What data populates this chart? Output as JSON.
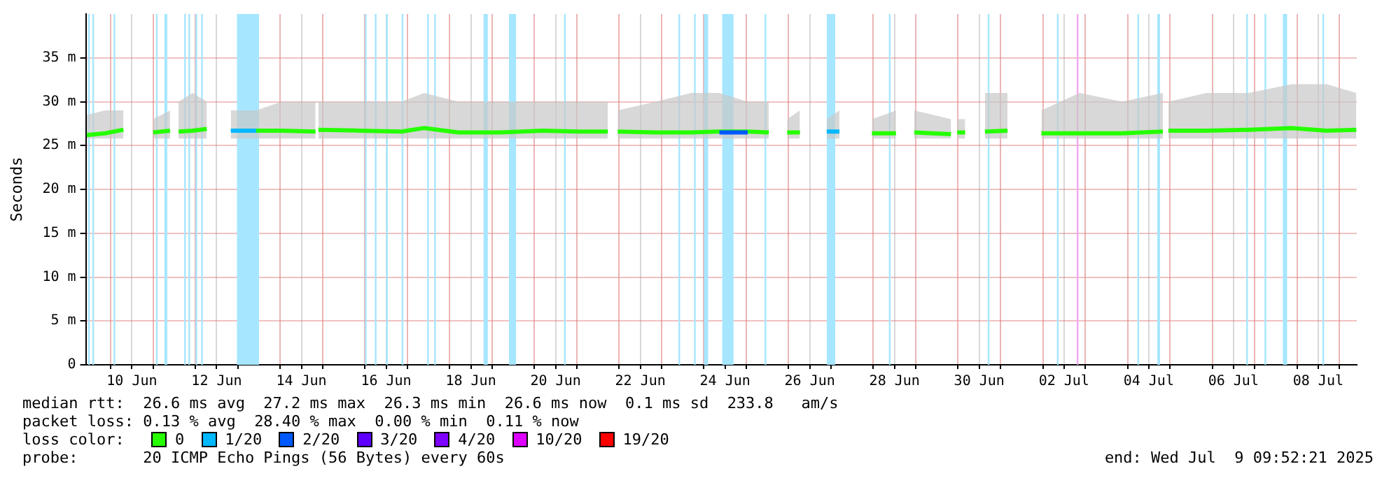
{
  "chart_data": {
    "type": "line",
    "ylabel": "Seconds",
    "legend_title": "loss color:",
    "legend": "bottom",
    "grid": true,
    "marker": "none",
    "line_style": "solid",
    "annotations": [
      "median rtt:  26.6 ms avg  27.2 ms max  26.3 ms min  26.6 ms now  0.1 ms sd  233.8   am/s",
      "packet loss: 0.13 % avg  28.40 % max  0.00 % min  0.11 % now",
      "probe:       20 ICMP Echo Pings (56 Bytes) every 60s",
      "end: Wed Jul  9 09:52:21 2025"
    ],
    "xlim": [
      "2025-06-09T09:52",
      "2025-07-09T09:52"
    ],
    "xticks": [
      {
        "value": "2025-06-10T00:00",
        "label": null
      },
      {
        "value": "2025-06-10T12:00",
        "label": "10 Jun"
      },
      {
        "value": "2025-06-11T00:00",
        "label": null
      },
      {
        "value": "2025-06-12T00:00",
        "label": null
      },
      {
        "value": "2025-06-12T12:00",
        "label": "12 Jun"
      },
      {
        "value": "2025-06-13T00:00",
        "label": null
      },
      {
        "value": "2025-06-14T00:00",
        "label": null
      },
      {
        "value": "2025-06-14T12:00",
        "label": "14 Jun"
      },
      {
        "value": "2025-06-15T00:00",
        "label": null
      },
      {
        "value": "2025-06-16T00:00",
        "label": null
      },
      {
        "value": "2025-06-16T12:00",
        "label": "16 Jun"
      },
      {
        "value": "2025-06-17T00:00",
        "label": null
      },
      {
        "value": "2025-06-18T00:00",
        "label": null
      },
      {
        "value": "2025-06-18T12:00",
        "label": "18 Jun"
      },
      {
        "value": "2025-06-19T00:00",
        "label": null
      },
      {
        "value": "2025-06-20T00:00",
        "label": null
      },
      {
        "value": "2025-06-20T12:00",
        "label": "20 Jun"
      },
      {
        "value": "2025-06-21T00:00",
        "label": null
      },
      {
        "value": "2025-06-22T00:00",
        "label": null
      },
      {
        "value": "2025-06-22T12:00",
        "label": "22 Jun"
      },
      {
        "value": "2025-06-23T00:00",
        "label": null
      },
      {
        "value": "2025-06-24T00:00",
        "label": null
      },
      {
        "value": "2025-06-24T12:00",
        "label": "24 Jun"
      },
      {
        "value": "2025-06-25T00:00",
        "label": null
      },
      {
        "value": "2025-06-26T00:00",
        "label": null
      },
      {
        "value": "2025-06-26T12:00",
        "label": "26 Jun"
      },
      {
        "value": "2025-06-27T00:00",
        "label": null
      },
      {
        "value": "2025-06-28T00:00",
        "label": null
      },
      {
        "value": "2025-06-28T12:00",
        "label": "28 Jun"
      },
      {
        "value": "2025-06-29T00:00",
        "label": null
      },
      {
        "value": "2025-06-30T00:00",
        "label": null
      },
      {
        "value": "2025-06-30T12:00",
        "label": "30 Jun"
      },
      {
        "value": "2025-07-01T00:00",
        "label": null
      },
      {
        "value": "2025-07-02T00:00",
        "label": null
      },
      {
        "value": "2025-07-02T12:00",
        "label": "02 Jul"
      },
      {
        "value": "2025-07-03T00:00",
        "label": null
      },
      {
        "value": "2025-07-04T00:00",
        "label": null
      },
      {
        "value": "2025-07-04T12:00",
        "label": "04 Jul"
      },
      {
        "value": "2025-07-05T00:00",
        "label": null
      },
      {
        "value": "2025-07-06T00:00",
        "label": null
      },
      {
        "value": "2025-07-06T12:00",
        "label": "06 Jul"
      },
      {
        "value": "2025-07-07T00:00",
        "label": null
      },
      {
        "value": "2025-07-08T00:00",
        "label": null
      },
      {
        "value": "2025-07-08T12:00",
        "label": "08 Jul"
      },
      {
        "value": "2025-07-09T00:00",
        "label": null
      }
    ],
    "ylim": [
      0,
      40
    ],
    "yticks": [
      0,
      {
        "value": 5,
        "label": "5 m"
      },
      {
        "value": 10,
        "label": "10 m"
      },
      {
        "value": 15,
        "label": "15 m"
      },
      {
        "value": 20,
        "label": "20 m"
      },
      {
        "value": 25,
        "label": "25 m"
      },
      {
        "value": 30,
        "label": "30 m"
      },
      {
        "value": 35,
        "label": "35 m"
      }
    ],
    "x": [
      "2025-06-09T10:24",
      "2025-06-09T20:48",
      "2025-06-10T07:12",
      "2025-06-10T12:00",
      "2025-06-11T00:00",
      "2025-06-11T09:36",
      "2025-06-11T12:00",
      "2025-06-11T14:24",
      "2025-06-11T22:24",
      "2025-06-12T06:24",
      "2025-06-12T12:00",
      "2025-06-12T20:00",
      "2025-06-13T10:24",
      "2025-06-14T00:48",
      "2025-06-14T20:00",
      "2025-06-14T21:00",
      "2025-06-14T21:36",
      "2025-06-15T20:48",
      "2025-06-16T20:48",
      "2025-06-17T09:36",
      "2025-06-18T04:48",
      "2025-06-19T04:48",
      "2025-06-20T04:48",
      "2025-06-21T00:48",
      "2025-06-21T17:36",
      "2025-06-21T20:00",
      "2025-06-21T23:12",
      "2025-06-22T20:48",
      "2025-06-23T16:48",
      "2025-06-24T08:48",
      "2025-06-25T00:48",
      "2025-06-25T12:48",
      "2025-06-25T15:00",
      "2025-06-25T23:12",
      "2025-06-26T06:24",
      "2025-06-26T12:00",
      "2025-06-26T21:36",
      "2025-06-27T04:48",
      "2025-06-27T12:00",
      "2025-06-27T23:12",
      "2025-06-28T12:48",
      "2025-06-28T20:00",
      "2025-06-28T23:12",
      "2025-06-29T20:00",
      "2025-06-29T22:00",
      "2025-06-29T23:30",
      "2025-06-30T04:00",
      "2025-06-30T06:00",
      "2025-06-30T15:12",
      "2025-07-01T04:00",
      "2025-07-01T12:00",
      "2025-07-01T23:12",
      "2025-07-02T20:48",
      "2025-07-03T20:48",
      "2025-07-04T20:00",
      "2025-07-04T22:00",
      "2025-07-04T23:12",
      "2025-07-05T20:48",
      "2025-07-06T20:48",
      "2025-07-07T20:48",
      "2025-07-08T16:48",
      "2025-07-09T09:36"
    ],
    "series": [
      {
        "name": "0",
        "color": "#26ff00",
        "values": [
          26.2,
          26.4,
          26.8,
          null,
          26.5,
          26.7,
          null,
          26.6,
          26.7,
          26.9,
          null,
          null,
          26.7,
          26.7,
          26.6,
          null,
          26.8,
          26.7,
          26.6,
          27.0,
          26.5,
          26.5,
          26.7,
          26.6,
          26.6,
          null,
          26.6,
          26.5,
          26.5,
          26.6,
          26.6,
          26.5,
          null,
          26.5,
          26.5,
          null,
          null,
          null,
          null,
          26.4,
          26.4,
          null,
          26.5,
          26.3,
          null,
          26.5,
          26.5,
          null,
          26.6,
          26.7,
          null,
          26.4,
          26.4,
          26.4,
          26.6,
          null,
          26.7,
          26.7,
          26.8,
          27.0,
          26.7,
          26.8
        ],
        "lower": [
          25.8,
          25.8,
          25.8,
          null,
          25.8,
          25.8,
          null,
          25.8,
          25.8,
          25.8,
          null,
          25.8,
          25.8,
          25.8,
          25.8,
          null,
          25.8,
          25.8,
          25.8,
          25.8,
          25.8,
          25.8,
          25.8,
          25.8,
          25.8,
          null,
          25.8,
          25.8,
          25.8,
          25.8,
          25.8,
          25.8,
          null,
          25.8,
          25.8,
          null,
          25.8,
          25.8,
          null,
          25.8,
          25.8,
          null,
          25.8,
          25.8,
          null,
          25.8,
          25.8,
          null,
          25.8,
          25.8,
          null,
          25.8,
          25.8,
          25.8,
          25.8,
          null,
          25.8,
          25.8,
          25.8,
          25.8,
          25.8,
          25.8
        ],
        "upper": [
          28.5,
          29,
          29,
          null,
          28,
          29,
          null,
          30,
          31,
          30,
          null,
          29,
          29,
          30,
          30,
          null,
          30,
          30,
          30,
          31,
          30,
          30,
          30,
          30,
          30,
          null,
          29,
          30,
          31,
          31,
          30,
          30,
          null,
          28,
          29,
          null,
          28,
          29,
          null,
          28,
          29,
          null,
          29,
          28,
          null,
          28,
          28,
          null,
          31,
          31,
          null,
          29,
          31,
          30,
          31,
          null,
          30,
          31,
          31,
          32,
          32,
          31
        ]
      },
      {
        "name": "1/20",
        "color": "#00b8ff",
        "values": [
          null,
          null,
          null,
          null,
          null,
          null,
          null,
          null,
          null,
          null,
          null,
          26.7,
          26.7,
          null,
          null,
          null,
          null,
          null,
          null,
          null,
          null,
          null,
          null,
          null,
          null,
          null,
          null,
          null,
          null,
          null,
          null,
          null,
          null,
          null,
          null,
          null,
          26.6,
          26.6,
          null,
          null,
          null,
          null,
          null,
          null,
          null,
          null,
          null,
          null,
          null,
          null,
          null,
          null,
          null,
          null,
          null,
          null,
          null,
          null,
          null,
          null,
          null,
          null
        ]
      },
      {
        "name": "2/20",
        "color": "#0059ff",
        "values": [
          null,
          null,
          null,
          null,
          null,
          null,
          null,
          null,
          null,
          null,
          null,
          null,
          null,
          null,
          null,
          null,
          null,
          null,
          null,
          null,
          null,
          null,
          null,
          null,
          null,
          null,
          null,
          null,
          null,
          26.5,
          26.5,
          null,
          null,
          null,
          null,
          null,
          null,
          null,
          null,
          null,
          null,
          null,
          null,
          null,
          null,
          null,
          null,
          null,
          null,
          null,
          null,
          null,
          null,
          null,
          null,
          null,
          null,
          null,
          null,
          null,
          null,
          null
        ]
      },
      {
        "name": "3/20",
        "color": "#5e00ff",
        "values": [
          null,
          null,
          null,
          null,
          null,
          null,
          null,
          null,
          null,
          null,
          null,
          null,
          null,
          null,
          null,
          null,
          null,
          null,
          null,
          null,
          null,
          null,
          null,
          null,
          null,
          null,
          null,
          null,
          null,
          null,
          null,
          null,
          null,
          null,
          null,
          null,
          null,
          null,
          null,
          null,
          null,
          null,
          null,
          null,
          null,
          null,
          null,
          null,
          null,
          null,
          null,
          null,
          null,
          null,
          null,
          null,
          null,
          null,
          null,
          null,
          null,
          null
        ]
      },
      {
        "name": "4/20",
        "color": "#7e00ff",
        "values": [
          null,
          null,
          null,
          null,
          null,
          null,
          null,
          null,
          null,
          null,
          null,
          null,
          null,
          null,
          null,
          null,
          null,
          null,
          null,
          null,
          null,
          null,
          null,
          null,
          null,
          null,
          null,
          null,
          null,
          null,
          null,
          null,
          null,
          null,
          null,
          null,
          null,
          null,
          null,
          null,
          null,
          null,
          null,
          null,
          null,
          null,
          null,
          null,
          null,
          null,
          null,
          null,
          null,
          null,
          null,
          null,
          null,
          null,
          null,
          null,
          null,
          null
        ]
      },
      {
        "name": "10/20",
        "color": "#dd00ff",
        "values": [
          null,
          null,
          null,
          null,
          null,
          null,
          null,
          null,
          null,
          null,
          null,
          null,
          null,
          null,
          null,
          null,
          null,
          null,
          null,
          null,
          null,
          null,
          null,
          null,
          null,
          null,
          null,
          null,
          null,
          null,
          null,
          null,
          null,
          null,
          null,
          null,
          null,
          null,
          null,
          null,
          null,
          null,
          null,
          null,
          null,
          null,
          null,
          null,
          null,
          null,
          null,
          null,
          null,
          null,
          null,
          null,
          null,
          null,
          null,
          null,
          null,
          null
        ]
      },
      {
        "name": "19/20",
        "color": "#ff0000",
        "values": [
          null,
          null,
          null,
          null,
          null,
          null,
          null,
          null,
          null,
          null,
          null,
          null,
          null,
          null,
          null,
          null,
          null,
          null,
          null,
          null,
          null,
          null,
          null,
          null,
          null,
          null,
          null,
          null,
          null,
          null,
          null,
          null,
          null,
          null,
          null,
          null,
          null,
          null,
          null,
          null,
          null,
          null,
          null,
          null,
          null,
          null,
          null,
          null,
          null,
          null,
          null,
          null,
          null,
          null,
          null,
          null,
          null,
          null,
          null,
          null,
          null,
          null
        ]
      }
    ],
    "bands": [
      {
        "axis": "x",
        "from": "2025-06-09T11:12",
        "to": "2025-06-09T11:52",
        "color": "#a6e6ff"
      },
      {
        "axis": "x",
        "from": "2025-06-09T13:36",
        "to": "2025-06-09T14:16",
        "color": "#a6e6ff"
      },
      {
        "axis": "x",
        "from": "2025-06-10T01:36",
        "to": "2025-06-10T02:16",
        "color": "#a6e6ff"
      },
      {
        "axis": "x",
        "from": "2025-06-11T01:36",
        "to": "2025-06-11T02:16",
        "color": "#a6e6ff"
      },
      {
        "axis": "x",
        "from": "2025-06-11T06:24",
        "to": "2025-06-11T08:00",
        "color": "#a6e6ff"
      },
      {
        "axis": "x",
        "from": "2025-06-11T17:36",
        "to": "2025-06-11T18:16",
        "color": "#a6e6ff"
      },
      {
        "axis": "x",
        "from": "2025-06-11T20:00",
        "to": "2025-06-11T20:40",
        "color": "#a6e6ff"
      },
      {
        "axis": "x",
        "from": "2025-06-12T00:00",
        "to": "2025-06-12T00:40",
        "color": "#a6e6ff"
      },
      {
        "axis": "x",
        "from": "2025-06-12T03:12",
        "to": "2025-06-12T03:52",
        "color": "#a6e6ff"
      },
      {
        "axis": "x",
        "from": "2025-06-12T23:30",
        "to": "2025-06-13T12:00",
        "color": "#a6e6ff"
      },
      {
        "axis": "x",
        "from": "2025-06-16T00:00",
        "to": "2025-06-16T00:40",
        "color": "#a6e6ff"
      },
      {
        "axis": "x",
        "from": "2025-06-16T05:36",
        "to": "2025-06-16T06:16",
        "color": "#a6e6ff"
      },
      {
        "axis": "x",
        "from": "2025-06-16T12:00",
        "to": "2025-06-16T12:40",
        "color": "#a6e6ff"
      },
      {
        "axis": "x",
        "from": "2025-06-16T20:48",
        "to": "2025-06-16T21:28",
        "color": "#a6e6ff"
      },
      {
        "axis": "x",
        "from": "2025-06-17T11:12",
        "to": "2025-06-17T11:52",
        "color": "#a6e6ff"
      },
      {
        "axis": "x",
        "from": "2025-06-17T15:12",
        "to": "2025-06-17T15:52",
        "color": "#a6e6ff"
      },
      {
        "axis": "x",
        "from": "2025-06-18T19:12",
        "to": "2025-06-18T21:36",
        "color": "#a6e6ff"
      },
      {
        "axis": "x",
        "from": "2025-06-19T09:36",
        "to": "2025-06-19T13:36",
        "color": "#a6e6ff"
      },
      {
        "axis": "x",
        "from": "2025-06-20T16:48",
        "to": "2025-06-20T17:28",
        "color": "#a6e6ff"
      },
      {
        "axis": "x",
        "from": "2025-06-23T09:36",
        "to": "2025-06-23T10:16",
        "color": "#a6e6ff"
      },
      {
        "axis": "x",
        "from": "2025-06-23T18:24",
        "to": "2025-06-23T19:04",
        "color": "#a6e6ff"
      },
      {
        "axis": "x",
        "from": "2025-06-24T00:00",
        "to": "2025-06-24T02:24",
        "color": "#a6e6ff"
      },
      {
        "axis": "x",
        "from": "2025-06-24T10:24",
        "to": "2025-06-24T16:48",
        "color": "#a6e6ff"
      },
      {
        "axis": "x",
        "from": "2025-06-25T10:24",
        "to": "2025-06-25T11:04",
        "color": "#a6e6ff"
      },
      {
        "axis": "x",
        "from": "2025-06-26T21:36",
        "to": "2025-06-27T02:24",
        "color": "#a6e6ff"
      },
      {
        "axis": "x",
        "from": "2025-06-28T08:48",
        "to": "2025-06-28T09:28",
        "color": "#a6e6ff"
      },
      {
        "axis": "x",
        "from": "2025-06-30T16:48",
        "to": "2025-06-30T17:28",
        "color": "#a6e6ff"
      },
      {
        "axis": "x",
        "from": "2025-07-02T08:00",
        "to": "2025-07-02T08:40",
        "color": "#a6e6ff"
      },
      {
        "axis": "x",
        "from": "2025-07-02T19:12",
        "to": "2025-07-02T20:00",
        "color": "#f0a8f0"
      },
      {
        "axis": "x",
        "from": "2025-07-04T05:36",
        "to": "2025-07-04T06:16",
        "color": "#a6e6ff"
      },
      {
        "axis": "x",
        "from": "2025-07-04T16:48",
        "to": "2025-07-04T18:24",
        "color": "#a6e6ff"
      },
      {
        "axis": "x",
        "from": "2025-07-06T19:12",
        "to": "2025-07-06T19:52",
        "color": "#a6e6ff"
      },
      {
        "axis": "x",
        "from": "2025-07-07T05:36",
        "to": "2025-07-07T06:16",
        "color": "#a6e6ff"
      },
      {
        "axis": "x",
        "from": "2025-07-07T16:00",
        "to": "2025-07-07T18:24",
        "color": "#a6e6ff"
      },
      {
        "axis": "x",
        "from": "2025-07-08T14:24",
        "to": "2025-07-08T15:04",
        "color": "#a6e6ff"
      }
    ]
  }
}
